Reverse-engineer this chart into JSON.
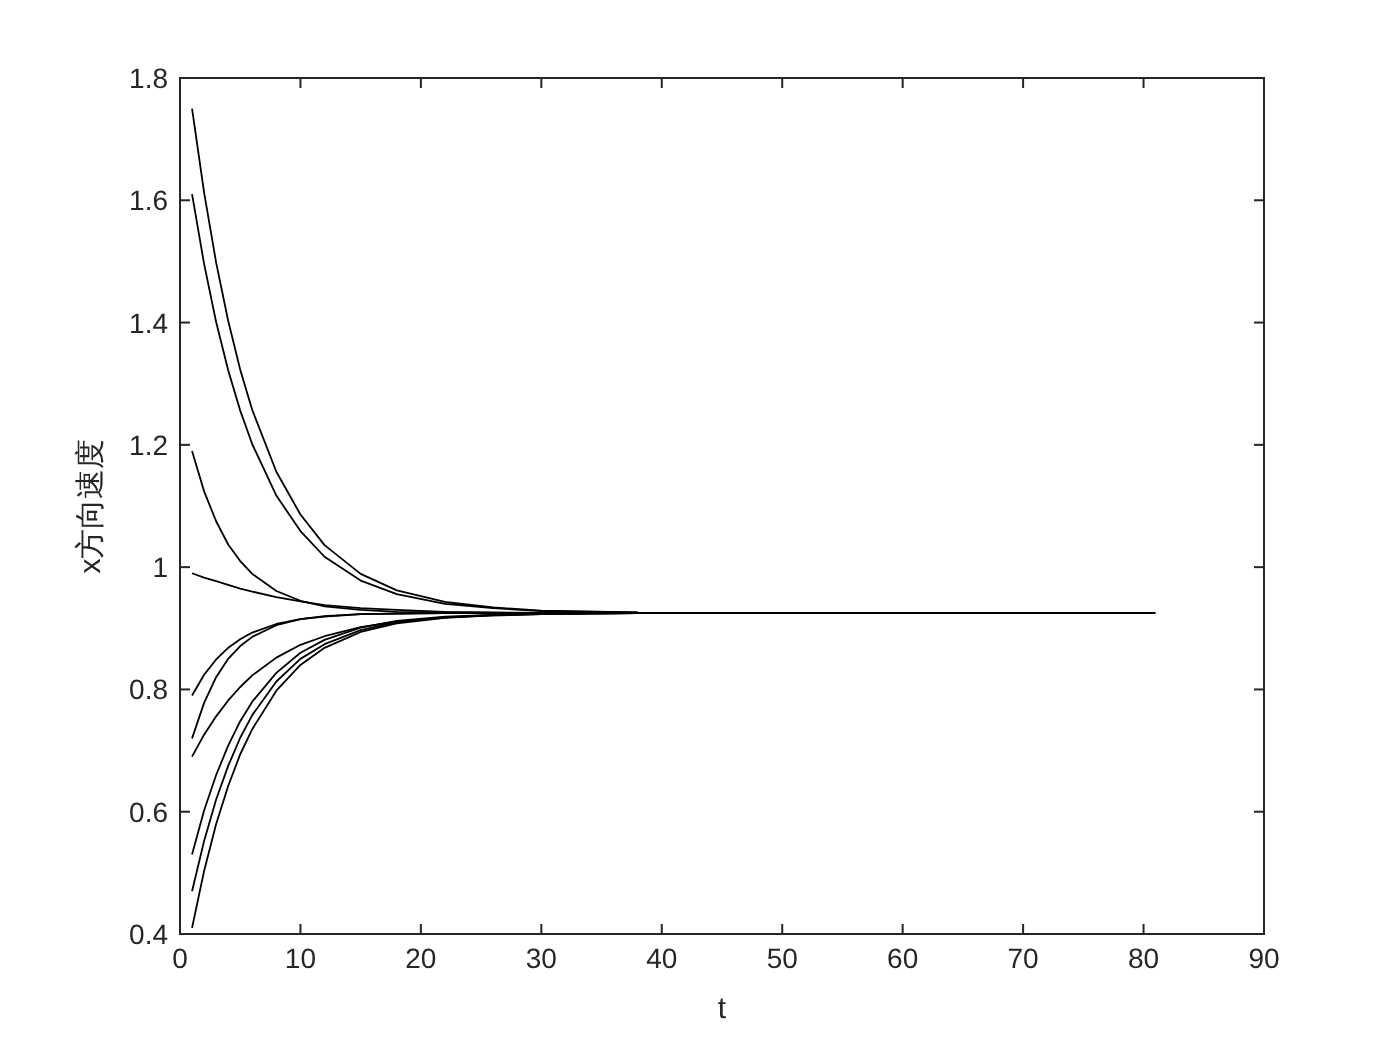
{
  "chart_data": {
    "type": "line",
    "xlabel": "t",
    "ylabel": "x方向速度",
    "xlim": [
      0,
      90
    ],
    "ylim": [
      0.4,
      1.8
    ],
    "xticks": [
      0,
      10,
      20,
      30,
      40,
      50,
      60,
      70,
      80,
      90
    ],
    "yticks": [
      0.4,
      0.6,
      0.8,
      1,
      1.2,
      1.4,
      1.6,
      1.8
    ],
    "grid": false,
    "marker": "none",
    "line_style": "solid",
    "x": [
      1,
      2,
      3,
      4,
      5,
      6,
      8,
      10,
      12,
      15,
      18,
      22,
      26,
      30,
      38
    ],
    "series": [
      {
        "color": "#000000",
        "values": [
          1.75,
          1.613,
          1.498,
          1.403,
          1.323,
          1.257,
          1.156,
          1.086,
          1.036,
          0.989,
          0.962,
          0.943,
          0.934,
          0.929,
          0.926
        ]
      },
      {
        "color": "#000000",
        "values": [
          1.61,
          1.496,
          1.401,
          1.322,
          1.256,
          1.201,
          1.117,
          1.059,
          1.017,
          0.978,
          0.956,
          0.94,
          0.933,
          0.928,
          0.926
        ]
      },
      {
        "color": "#000000",
        "values": [
          1.19,
          1.124,
          1.075,
          1.037,
          1.01,
          0.989,
          0.961,
          0.945,
          0.936,
          0.93,
          0.927,
          0.926,
          0.925,
          0.925,
          0.925
        ]
      },
      {
        "color": "#000000",
        "x": [
          1,
          2,
          3,
          4,
          5,
          6,
          8,
          10,
          12,
          15,
          18,
          22,
          26,
          30,
          38,
          81
        ],
        "values": [
          0.99,
          0.983,
          0.977,
          0.971,
          0.965,
          0.96,
          0.951,
          0.944,
          0.938,
          0.933,
          0.93,
          0.927,
          0.926,
          0.925,
          0.925,
          0.925
        ]
      },
      {
        "color": "#000000",
        "values": [
          0.79,
          0.824,
          0.849,
          0.868,
          0.882,
          0.893,
          0.907,
          0.915,
          0.919,
          0.923,
          0.924,
          0.925,
          0.925,
          0.925,
          0.925
        ]
      },
      {
        "color": "#000000",
        "values": [
          0.72,
          0.778,
          0.82,
          0.85,
          0.871,
          0.886,
          0.905,
          0.915,
          0.92,
          0.923,
          0.924,
          0.925,
          0.925,
          0.925,
          0.925
        ]
      },
      {
        "color": "#000000",
        "values": [
          0.69,
          0.726,
          0.756,
          0.782,
          0.804,
          0.823,
          0.852,
          0.873,
          0.887,
          0.902,
          0.911,
          0.918,
          0.921,
          0.923,
          0.925
        ]
      },
      {
        "color": "#000000",
        "values": [
          0.53,
          0.602,
          0.66,
          0.708,
          0.748,
          0.78,
          0.827,
          0.86,
          0.881,
          0.901,
          0.912,
          0.919,
          0.922,
          0.924,
          0.925
        ]
      },
      {
        "color": "#000000",
        "values": [
          0.47,
          0.552,
          0.62,
          0.675,
          0.721,
          0.758,
          0.813,
          0.85,
          0.874,
          0.897,
          0.91,
          0.918,
          0.922,
          0.924,
          0.925
        ]
      },
      {
        "color": "#000000",
        "values": [
          0.41,
          0.503,
          0.58,
          0.642,
          0.694,
          0.735,
          0.798,
          0.84,
          0.868,
          0.894,
          0.908,
          0.917,
          0.921,
          0.923,
          0.925
        ]
      }
    ]
  }
}
